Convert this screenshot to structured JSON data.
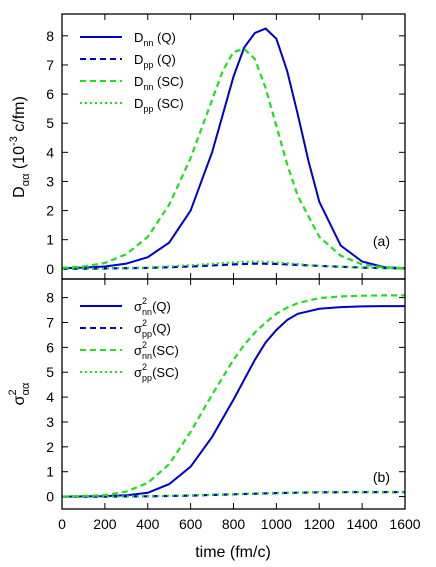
{
  "chart_data": [
    {
      "type": "line",
      "panel_label": "(a)",
      "ylabel": {
        "main": "D",
        "sub": "αα",
        "pre": " (10",
        "sup": "-3",
        "post": " c/fm)"
      },
      "xlim": [
        0,
        1600
      ],
      "ylim": [
        -0.35,
        8.75
      ],
      "yticks": [
        0,
        1,
        2,
        3,
        4,
        5,
        6,
        7,
        8
      ],
      "legend_position": "top-left",
      "series": [
        {
          "name": "D_nn (Q)",
          "legend": {
            "main": "D",
            "sub": "nn",
            "rest": " (Q)"
          },
          "color": "#0000cc",
          "style": "solid",
          "x": [
            0,
            100,
            200,
            300,
            400,
            500,
            600,
            700,
            750,
            800,
            850,
            900,
            950,
            1000,
            1050,
            1100,
            1150,
            1200,
            1300,
            1400,
            1500,
            1600
          ],
          "y": [
            0.02,
            0.04,
            0.08,
            0.18,
            0.4,
            0.9,
            2.0,
            4.0,
            5.3,
            6.6,
            7.6,
            8.1,
            8.25,
            7.9,
            6.8,
            5.3,
            3.7,
            2.3,
            0.8,
            0.25,
            0.06,
            0.02
          ]
        },
        {
          "name": "D_pp (Q)",
          "legend": {
            "main": "D",
            "sub": "pp",
            "rest": " (Q)"
          },
          "color": "#0000cc",
          "style": "dashed",
          "x": [
            0,
            200,
            400,
            600,
            800,
            900,
            1000,
            1200,
            1400,
            1600
          ],
          "y": [
            0.0,
            0.01,
            0.03,
            0.08,
            0.15,
            0.18,
            0.17,
            0.1,
            0.04,
            0.01
          ]
        },
        {
          "name": "D_nn (SC)",
          "legend": {
            "main": "D",
            "sub": "nn",
            "rest": " (SC)"
          },
          "color": "#22dd22",
          "style": "dashed",
          "x": [
            0,
            100,
            200,
            300,
            400,
            500,
            600,
            650,
            700,
            750,
            800,
            850,
            900,
            950,
            1000,
            1050,
            1100,
            1200,
            1300,
            1400,
            1500,
            1600
          ],
          "y": [
            0.03,
            0.08,
            0.2,
            0.5,
            1.1,
            2.2,
            3.8,
            4.8,
            5.8,
            6.8,
            7.45,
            7.55,
            7.2,
            6.2,
            4.9,
            3.6,
            2.5,
            1.1,
            0.45,
            0.15,
            0.05,
            0.02
          ]
        },
        {
          "name": "D_pp (SC)",
          "legend": {
            "main": "D",
            "sub": "pp",
            "rest": " (SC)"
          },
          "color": "#22dd22",
          "style": "dotted",
          "x": [
            0,
            200,
            400,
            600,
            800,
            900,
            1000,
            1200,
            1400,
            1600
          ],
          "y": [
            0.0,
            0.01,
            0.04,
            0.12,
            0.22,
            0.25,
            0.22,
            0.1,
            0.04,
            0.01
          ]
        }
      ]
    },
    {
      "type": "line",
      "panel_label": "(b)",
      "ylabel": {
        "main": "σ",
        "sup": "2",
        "sub": "αα"
      },
      "xlabel": "time (fm/c)",
      "xlim": [
        0,
        1600
      ],
      "ylim": [
        -0.5,
        8.75
      ],
      "xticks": [
        0,
        200,
        400,
        600,
        800,
        1000,
        1200,
        1400,
        1600
      ],
      "yticks": [
        0,
        1,
        2,
        3,
        4,
        5,
        6,
        7,
        8
      ],
      "legend_position": "top-left",
      "series": [
        {
          "name": "σ²_nn(Q)",
          "legend": {
            "main": "σ",
            "sup": "2",
            "sub": "nn",
            "rest": "(Q)"
          },
          "color": "#0000cc",
          "style": "solid",
          "x": [
            0,
            200,
            300,
            400,
            500,
            600,
            700,
            800,
            850,
            900,
            950,
            1000,
            1050,
            1100,
            1200,
            1300,
            1400,
            1500,
            1600
          ],
          "y": [
            0.0,
            0.02,
            0.05,
            0.15,
            0.5,
            1.2,
            2.4,
            3.9,
            4.7,
            5.5,
            6.2,
            6.7,
            7.1,
            7.35,
            7.55,
            7.62,
            7.65,
            7.66,
            7.66
          ]
        },
        {
          "name": "σ²_pp(Q)",
          "legend": {
            "main": "σ",
            "sup": "2",
            "sub": "pp",
            "rest": "(Q)"
          },
          "color": "#0000cc",
          "style": "dashed",
          "x": [
            0,
            200,
            400,
            600,
            800,
            1000,
            1200,
            1400,
            1600
          ],
          "y": [
            0.0,
            0.0,
            0.01,
            0.04,
            0.09,
            0.14,
            0.17,
            0.18,
            0.18
          ]
        },
        {
          "name": "σ²_nn(SC)",
          "legend": {
            "main": "σ",
            "sup": "2",
            "sub": "nn",
            "rest": "(SC)"
          },
          "color": "#22dd22",
          "style": "dashed",
          "x": [
            0,
            200,
            300,
            400,
            500,
            600,
            700,
            800,
            850,
            900,
            950,
            1000,
            1050,
            1100,
            1200,
            1300,
            1400,
            1500,
            1600
          ],
          "y": [
            0.0,
            0.06,
            0.2,
            0.55,
            1.3,
            2.6,
            4.1,
            5.5,
            6.1,
            6.6,
            7.0,
            7.35,
            7.6,
            7.78,
            7.98,
            8.05,
            8.08,
            8.09,
            8.09
          ]
        },
        {
          "name": "σ²_pp(SC)",
          "legend": {
            "main": "σ",
            "sup": "2",
            "sub": "pp",
            "rest": "(SC)"
          },
          "color": "#22dd22",
          "style": "dotted",
          "x": [
            0,
            200,
            400,
            600,
            800,
            1000,
            1200,
            1400,
            1600
          ],
          "y": [
            0.0,
            0.0,
            0.02,
            0.05,
            0.1,
            0.15,
            0.18,
            0.19,
            0.19
          ]
        }
      ]
    }
  ]
}
